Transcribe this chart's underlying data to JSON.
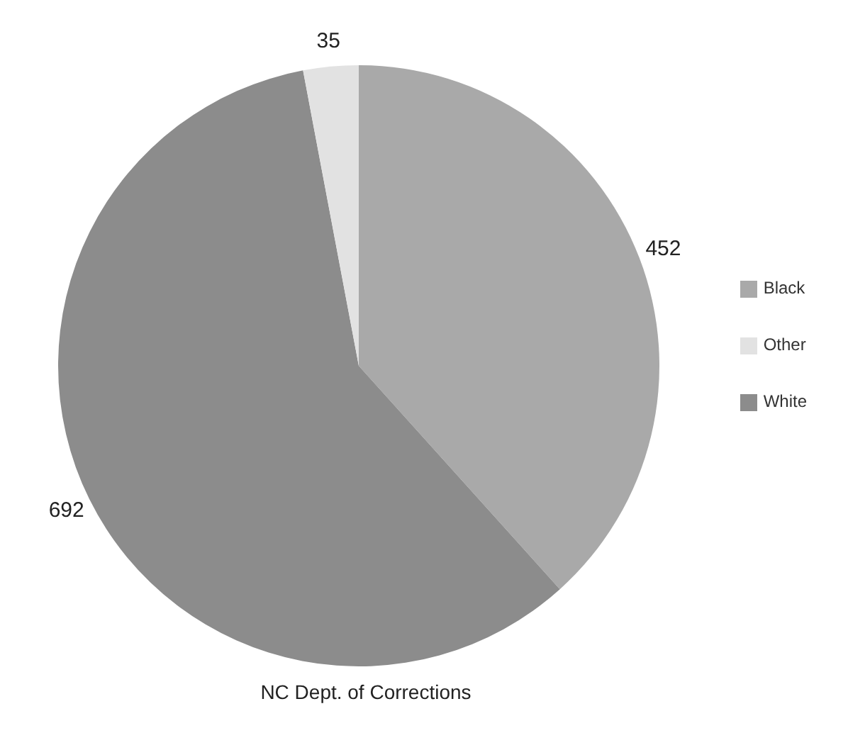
{
  "chart_data": {
    "type": "pie",
    "categories": [
      "Black",
      "White",
      "Other"
    ],
    "values": [
      452,
      692,
      35
    ],
    "colors": [
      "#a9a9a9",
      "#8c8c8c",
      "#e2e2e2"
    ],
    "data_labels": true,
    "legend": "right",
    "annotations": [
      "NC Dept. of Corrections"
    ]
  }
}
